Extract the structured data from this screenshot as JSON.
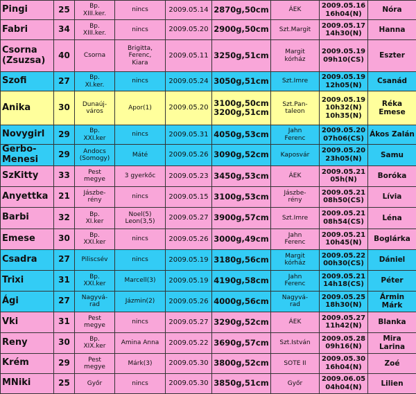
{
  "table": {
    "rows": [
      {
        "color": "#f9a6d9",
        "cells": [
          "Pingi",
          "25",
          "Bp.\nXIII.ker.",
          "nincs",
          "2009.05.14",
          "2870g,50cm",
          "ÁEK",
          "2009.05.16\n16h04(N)",
          "Nóra"
        ]
      },
      {
        "color": "#f9a6d9",
        "cells": [
          "Fabri",
          "34",
          "Bp.\nXIII.ker.",
          "nincs",
          "2009.05.20",
          "2900g,50cm",
          "Szt.Margit",
          "2009.05.17\n14h30(N)",
          "Hanna"
        ]
      },
      {
        "color": "#f9a6d9",
        "cells": [
          "Csorna\n(Zsuzsa)",
          "40",
          "Csorna",
          "Brigitta,\nFerenc,\nKiara",
          "2009.05.11",
          "3250g,51cm",
          "Margit\nkórház",
          "2009.05.19\n09h10(CS)",
          "Eszter"
        ]
      },
      {
        "color": "#33ccf5",
        "cells": [
          "Szofi",
          "27",
          "Bp.\nXI.ker.",
          "nincs",
          "2009.05.24",
          "3050g,51cm",
          "Szt.Imre",
          "2009.05.19\n12h05(N)",
          "Csanád"
        ]
      },
      {
        "color": "#ffff9c",
        "cells": [
          "Anika",
          "30",
          "Dunaúj-\nváros",
          "Apor(1)",
          "2009.05.20",
          "3100g,50cm\n3200g,51cm",
          "Szt.Pan-\ntaleon",
          "2009.05.19\n10h32(N)\n10h35(N)",
          "Réka\nEmese"
        ]
      },
      {
        "color": "#33ccf5",
        "cells": [
          "Novygirl",
          "29",
          "Bp.\nXXI.ker",
          "nincs",
          "2009.05.31",
          "4050g,53cm",
          "Jahn\nFerenc",
          "2009.05.20\n07h06(CS)",
          "Ákos Zalán"
        ]
      },
      {
        "color": "#33ccf5",
        "cells": [
          "Gerbo-\nMenesi",
          "29",
          "Andocs\n(Somogy)",
          "Máté",
          "2009.05.26",
          "3090g,52cm",
          "Kaposvár",
          "2009.05.20\n23h05(N)",
          "Samu"
        ]
      },
      {
        "color": "#f9a6d9",
        "cells": [
          "SzKitty",
          "33",
          "Pest\nmegye",
          "3 gyerkőc",
          "2009.05.23",
          "3450g,53cm",
          "ÁEK",
          "2009.05.21\n05h(N)",
          "Boróka"
        ]
      },
      {
        "color": "#f9a6d9",
        "cells": [
          "Anyettka",
          "21",
          "Jászbe-\nrény",
          "nincs",
          "2009.05.15",
          "3100g,53cm",
          "Jászbe-\nrény",
          "2009.05.21\n08h50(CS)",
          "Lívia"
        ]
      },
      {
        "color": "#f9a6d9",
        "cells": [
          "Barbi",
          "32",
          "Bp.\nXI.ker",
          "Noel(5)\nLeon(3,5)",
          "2009.05.27",
          "3900g,57cm",
          "Szt.Imre",
          "2009.05.21\n08h54(CS)",
          "Léna"
        ]
      },
      {
        "color": "#f9a6d9",
        "cells": [
          "Emese",
          "30",
          "Bp.\nXXI.ker",
          "nincs",
          "2009.05.26",
          "3000g,49cm",
          "Jahn\nFerenc",
          "2009.05.21\n10h45(N)",
          "Boglárka"
        ]
      },
      {
        "color": "#33ccf5",
        "cells": [
          "Csadra",
          "27",
          "Piliscsév",
          "nincs",
          "2009.05.19",
          "3180g,56cm",
          "Margit\nkórház",
          "2009.05.22\n00h30(CS)",
          "Dániel"
        ]
      },
      {
        "color": "#33ccf5",
        "cells": [
          "Trixi",
          "31",
          "Bp.\nXXI.ker",
          "Marcell(3)",
          "2009.05.19",
          "4190g,58cm",
          "Jahn\nFerenc",
          "2009.05.21\n14h18(CS)",
          "Péter"
        ]
      },
      {
        "color": "#33ccf5",
        "cells": [
          "Ági",
          "27",
          "Nagyvá-\nrad",
          "Jázmin(2)",
          "2009.05.26",
          "4000g,56cm",
          "Nagyvá-\nrad",
          "2009.05.25\n18h30(N)",
          "Ármin Márk"
        ]
      },
      {
        "color": "#f9a6d9",
        "cells": [
          "Vki",
          "31",
          "Pest\nmegye",
          "nincs",
          "2009.05.27",
          "3290g,52cm",
          "ÁEK",
          "2009.05.27\n11h42(N)",
          "Blanka"
        ]
      },
      {
        "color": "#f9a6d9",
        "cells": [
          "Reny",
          "30",
          "Bp.\nXIX.ker",
          "Amina Anna",
          "2009.05.22",
          "3690g,57cm",
          "Szt.István",
          "2009.05.28\n09h16(N)",
          "Mira Larina"
        ]
      },
      {
        "color": "#f9a6d9",
        "cells": [
          "Krém",
          "29",
          "Pest\nmegye",
          "Márk(3)",
          "2009.05.30",
          "3800g,52cm",
          "SOTE II",
          "2009.05.30\n16h04(N)",
          "Zoé"
        ]
      },
      {
        "color": "#f9a6d9",
        "cells": [
          "MNiki",
          "25",
          "Győr",
          "nincs",
          "2009.05.30",
          "3850g,51cm",
          "Győr",
          "2009.06.05\n04h04(N)",
          "Lilien"
        ]
      }
    ]
  }
}
